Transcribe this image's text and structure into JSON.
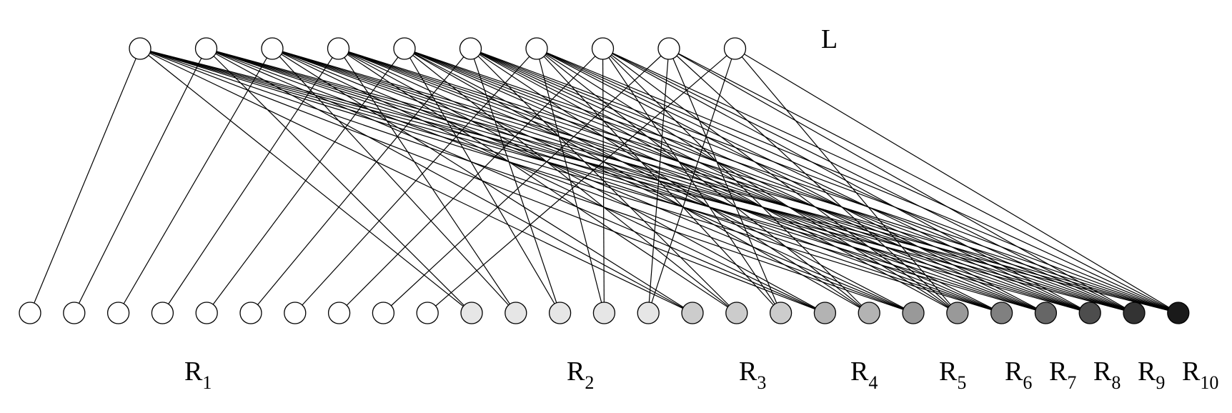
{
  "top_set": {
    "label": "L",
    "node_count": 10,
    "fill_color": "#ffffff"
  },
  "bottom_groups": [
    {
      "label": "R",
      "subscript": "1",
      "size": 10,
      "color": "#ffffff"
    },
    {
      "label": "R",
      "subscript": "2",
      "size": 5,
      "color": "#e6e6e6"
    },
    {
      "label": "R",
      "subscript": "3",
      "size": 3,
      "color": "#cccccc"
    },
    {
      "label": "R",
      "subscript": "4",
      "size": 2,
      "color": "#b3b3b3"
    },
    {
      "label": "R",
      "subscript": "5",
      "size": 2,
      "color": "#999999"
    },
    {
      "label": "R",
      "subscript": "6",
      "size": 1,
      "color": "#808080"
    },
    {
      "label": "R",
      "subscript": "7",
      "size": 1,
      "color": "#666666"
    },
    {
      "label": "R",
      "subscript": "8",
      "size": 1,
      "color": "#4d4d4d"
    },
    {
      "label": "R",
      "subscript": "9",
      "size": 1,
      "color": "#333333"
    },
    {
      "label": "R",
      "subscript": "10",
      "size": 1,
      "color": "#1a1a1a"
    }
  ],
  "edge_color": "#000000",
  "node_stroke_color": "#000000"
}
